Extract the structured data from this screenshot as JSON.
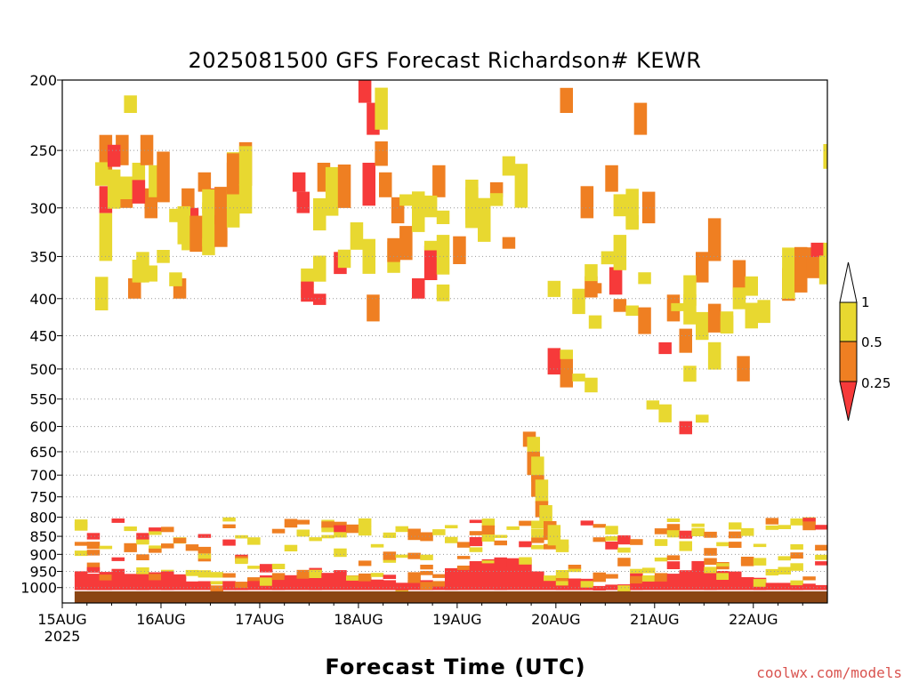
{
  "chart_data": {
    "type": "heatmap",
    "title": "2025081500 GFS Forecast Richardson# KEWR",
    "xlabel": "Forecast Time (UTC)",
    "credit": "coolwx.com/models",
    "x_start_label_year": "2025",
    "x_ticks": [
      {
        "label": "15AUG",
        "hour": 0
      },
      {
        "label": "16AUG",
        "hour": 24
      },
      {
        "label": "17AUG",
        "hour": 48
      },
      {
        "label": "18AUG",
        "hour": 72
      },
      {
        "label": "19AUG",
        "hour": 96
      },
      {
        "label": "20AUG",
        "hour": 120
      },
      {
        "label": "21AUG",
        "hour": 144
      },
      {
        "label": "22AUG",
        "hour": 168
      }
    ],
    "x_range_hours": [
      0,
      186
    ],
    "y_axis": "pressure (hPa), log scale, inverted",
    "y_ticks": [
      200,
      250,
      300,
      350,
      400,
      450,
      500,
      550,
      600,
      650,
      700,
      750,
      800,
      850,
      900,
      950,
      1000
    ],
    "ylim": [
      1050,
      200
    ],
    "surface_pressure": 1012,
    "grid": "dotted at pressure levels",
    "legend": {
      "placement": "right",
      "labels": [
        "1",
        "0.5",
        "0.25"
      ],
      "bins": [
        {
          "range": "> 1",
          "color": "#ffffff"
        },
        {
          "range": "0.5 - 1",
          "color": "#e8d830"
        },
        {
          "range": "0.25 - 0.5",
          "color": "#ef7f22"
        },
        {
          "range": "< 0.25",
          "color": "#f63a3a"
        }
      ]
    },
    "colors": {
      "yellow": "#e8d830",
      "orange": "#ef7f22",
      "red": "#f63a3a",
      "ground": "#8b4513"
    },
    "cells": [
      {
        "t": 9,
        "p1": 238,
        "p2": 268,
        "c": "orange"
      },
      {
        "t": 9,
        "p1": 280,
        "p2": 305,
        "c": "red"
      },
      {
        "t": 9,
        "p1": 305,
        "p2": 355,
        "c": "yellow"
      },
      {
        "t": 13,
        "p1": 238,
        "p2": 262,
        "c": "orange"
      },
      {
        "t": 14,
        "p1": 285,
        "p2": 300,
        "c": "orange"
      },
      {
        "t": 15,
        "p1": 210,
        "p2": 222,
        "c": "yellow"
      },
      {
        "t": 16,
        "p1": 375,
        "p2": 400,
        "c": "orange"
      },
      {
        "t": 17,
        "p1": 260,
        "p2": 285,
        "c": "yellow"
      },
      {
        "t": 18,
        "p1": 345,
        "p2": 380,
        "c": "yellow"
      },
      {
        "t": 19,
        "p1": 238,
        "p2": 262,
        "c": "orange"
      },
      {
        "t": 20,
        "p1": 282,
        "p2": 310,
        "c": "orange"
      },
      {
        "t": 21,
        "p1": 262,
        "p2": 290,
        "c": "yellow"
      },
      {
        "t": 27,
        "p1": 375,
        "p2": 400,
        "c": "orange"
      },
      {
        "t": 29,
        "p1": 282,
        "p2": 315,
        "c": "orange"
      },
      {
        "t": 30,
        "p1": 300,
        "p2": 325,
        "c": "red"
      },
      {
        "t": 31,
        "p1": 315,
        "p2": 340,
        "c": "yellow"
      },
      {
        "t": 33,
        "p1": 268,
        "p2": 285,
        "c": "orange"
      },
      {
        "t": 36,
        "p1": 282,
        "p2": 305,
        "c": "red"
      },
      {
        "t": 38,
        "p1": 300,
        "p2": 315,
        "c": "orange"
      },
      {
        "t": 56,
        "p1": 268,
        "p2": 285,
        "c": "red"
      },
      {
        "t": 57,
        "p1": 285,
        "p2": 305,
        "c": "red"
      },
      {
        "t": 62,
        "p1": 260,
        "p2": 285,
        "c": "orange"
      },
      {
        "t": 66,
        "p1": 345,
        "p2": 370,
        "c": "red"
      },
      {
        "t": 72,
        "p1": 200,
        "p2": 215,
        "c": "red"
      },
      {
        "t": 73,
        "p1": 260,
        "p2": 290,
        "c": "red"
      },
      {
        "t": 74,
        "p1": 215,
        "p2": 238,
        "c": "red"
      },
      {
        "t": 74,
        "p1": 395,
        "p2": 430,
        "c": "orange"
      },
      {
        "t": 77,
        "p1": 268,
        "p2": 290,
        "c": "orange"
      },
      {
        "t": 80,
        "p1": 290,
        "p2": 315,
        "c": "orange"
      },
      {
        "t": 85,
        "p1": 375,
        "p2": 400,
        "c": "red"
      },
      {
        "t": 90,
        "p1": 262,
        "p2": 290,
        "c": "orange"
      },
      {
        "t": 121,
        "p1": 205,
        "p2": 222,
        "c": "orange"
      },
      {
        "t": 121,
        "p1": 475,
        "p2": 530,
        "c": "orange"
      },
      {
        "t": 126,
        "p1": 280,
        "p2": 310,
        "c": "orange"
      },
      {
        "t": 132,
        "p1": 262,
        "p2": 285,
        "c": "orange"
      },
      {
        "t": 133,
        "p1": 362,
        "p2": 395,
        "c": "red"
      },
      {
        "t": 139,
        "p1": 215,
        "p2": 238,
        "c": "orange"
      },
      {
        "t": 141,
        "p1": 285,
        "p2": 315,
        "c": "orange"
      },
      {
        "t": 147,
        "p1": 395,
        "p2": 430,
        "c": "orange"
      },
      {
        "t": 150,
        "p1": 440,
        "p2": 475,
        "c": "orange"
      },
      {
        "t": 150,
        "p1": 590,
        "p2": 615,
        "c": "red"
      },
      {
        "t": 154,
        "p1": 345,
        "p2": 380,
        "c": "orange"
      },
      {
        "t": 157,
        "p1": 310,
        "p2": 355,
        "c": "orange"
      },
      {
        "t": 164,
        "p1": 480,
        "p2": 520,
        "c": "orange"
      },
      {
        "t": 179,
        "p1": 340,
        "p2": 365,
        "c": "orange"
      },
      {
        "t": 182,
        "p1": 335,
        "p2": 370,
        "c": "red"
      },
      {
        "t": 185,
        "p1": 245,
        "p2": 265,
        "c": "yellow"
      },
      {
        "t": 185,
        "p1": 335,
        "p2": 370,
        "c": "yellow"
      }
    ]
  }
}
